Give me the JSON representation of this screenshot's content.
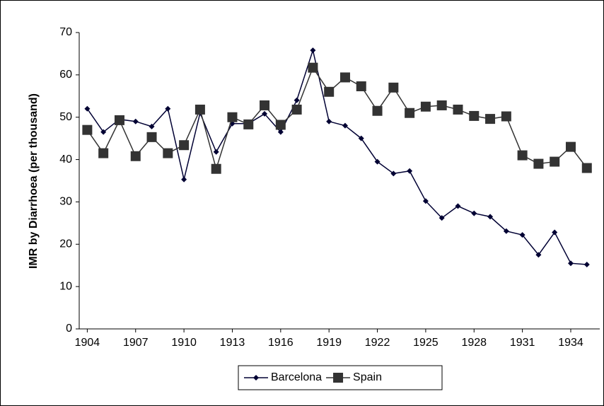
{
  "chart_data": {
    "type": "line",
    "y_label": "IMR by Diarrhoea (per thousand)",
    "x": [
      1904,
      1905,
      1906,
      1907,
      1908,
      1909,
      1910,
      1911,
      1912,
      1913,
      1914,
      1915,
      1916,
      1917,
      1918,
      1919,
      1920,
      1921,
      1922,
      1923,
      1924,
      1925,
      1926,
      1927,
      1928,
      1929,
      1930,
      1931,
      1932,
      1933,
      1934,
      1935
    ],
    "series": [
      {
        "name": "Barcelona",
        "color": "#000033",
        "marker": "diamond",
        "values": [
          52,
          46.5,
          49.5,
          49,
          47.8,
          52,
          35.3,
          51,
          41.8,
          48.5,
          48.5,
          50.8,
          46.5,
          54,
          65.8,
          49,
          48,
          45,
          39.5,
          36.7,
          37.3,
          30.2,
          26.2,
          29,
          27.3,
          26.5,
          23.1,
          22.2,
          17.5,
          22.8,
          15.5,
          15.2
        ]
      },
      {
        "name": "Spain",
        "color": "#333333",
        "marker": "square",
        "values": [
          47,
          41.5,
          49.3,
          40.8,
          45.3,
          41.5,
          43.4,
          51.8,
          37.8,
          50,
          48.3,
          52.8,
          48.2,
          51.8,
          61.7,
          56,
          59.4,
          57.3,
          51.5,
          57,
          51,
          52.5,
          52.8,
          51.8,
          50.3,
          49.6,
          50.2,
          41,
          39,
          39.5,
          43,
          38
        ]
      }
    ],
    "xlim": [
      1903.5,
      1935.8
    ],
    "xticks": [
      1904,
      1907,
      1910,
      1913,
      1916,
      1919,
      1922,
      1925,
      1928,
      1931,
      1934
    ],
    "ylim": [
      0,
      70
    ],
    "yticks": [
      0,
      10,
      20,
      30,
      40,
      50,
      60,
      70
    ],
    "legend": "bottom"
  }
}
